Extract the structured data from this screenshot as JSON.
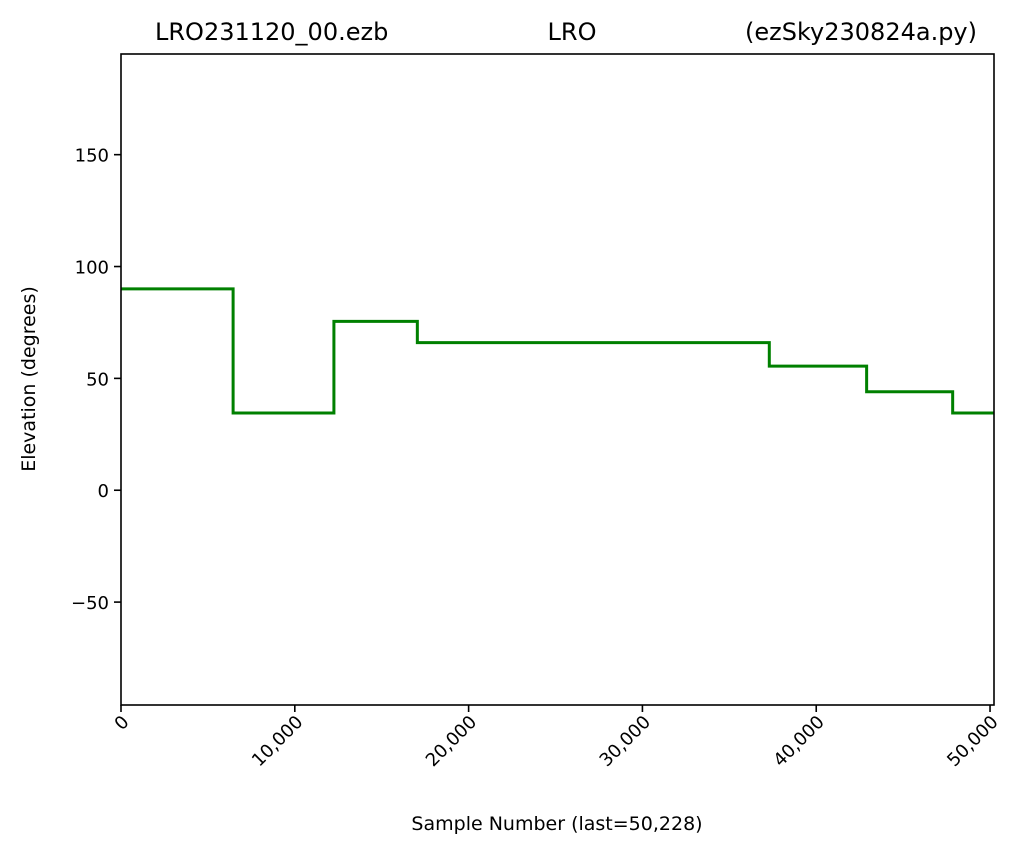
{
  "title": {
    "left": "LRO231120_00.ezb",
    "center": "LRO",
    "right": "(ezSky230824a.py)"
  },
  "chart_data": {
    "type": "line",
    "step": true,
    "title": "LRO231120_00.ezb LRO (ezSky230824a.py)",
    "xlabel": "Sample Number (last=50,228)",
    "ylabel": "Elevation (degrees)",
    "xlim": [
      0,
      50228
    ],
    "ylim": [
      -96,
      195
    ],
    "xticks": [
      0,
      10000,
      20000,
      30000,
      40000,
      50000
    ],
    "xtick_labels": [
      "0",
      "10,000",
      "20,000",
      "30,000",
      "40,000",
      "50,000"
    ],
    "yticks": [
      -50,
      0,
      50,
      100,
      150
    ],
    "ytick_labels": [
      "−50",
      "0",
      "50",
      "100",
      "150"
    ],
    "grid": false,
    "series": [
      {
        "color": "#008000",
        "x": [
          0,
          6450,
          6450,
          12250,
          12250,
          17050,
          17050,
          37300,
          37300,
          42900,
          42900,
          47850,
          47850,
          50228
        ],
        "y": [
          90,
          90,
          34.5,
          34.5,
          75.5,
          75.5,
          66,
          66,
          55.5,
          55.5,
          44,
          44,
          34.5,
          34.5
        ]
      }
    ]
  }
}
